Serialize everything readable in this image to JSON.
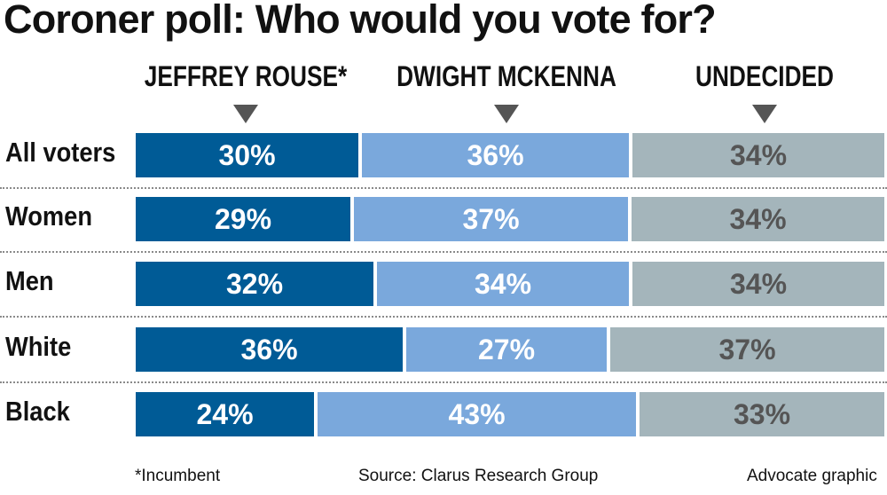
{
  "title": "Coroner poll: Who would you vote for?",
  "footnote": "*Incumbent",
  "source": "Source: Clarus Research Group",
  "credit": "Advocate graphic",
  "colors": {
    "rouse": "#005b96",
    "mckenna": "#7aa8dc",
    "undecided": "#a4b5bb",
    "text_on_dark": "#ffffff",
    "text_on_undecided": "#555555"
  },
  "chart_data": {
    "type": "bar",
    "stacked": true,
    "orientation": "horizontal",
    "title": "Coroner poll: Who would you vote for?",
    "categories": [
      "All voters",
      "Women",
      "Men",
      "White",
      "Black"
    ],
    "series": [
      {
        "name": "JEFFREY ROUSE*",
        "values": [
          30,
          29,
          32,
          36,
          24
        ]
      },
      {
        "name": "DWIGHT MCKENNA",
        "values": [
          36,
          37,
          34,
          27,
          43
        ]
      },
      {
        "name": "UNDECIDED",
        "values": [
          34,
          34,
          34,
          37,
          33
        ]
      }
    ],
    "unit": "%"
  }
}
